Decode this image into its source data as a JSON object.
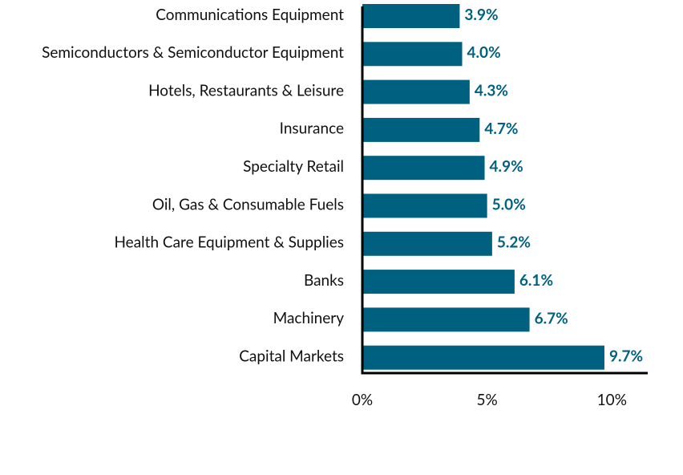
{
  "chart_data": {
    "type": "bar",
    "orientation": "horizontal",
    "color": "#00607f",
    "categories": [
      "Communications Equipment",
      "Semiconductors & Semiconductor Equipment",
      "Hotels, Restaurants & Leisure",
      "Insurance",
      "Specialty Retail",
      "Oil, Gas & Consumable Fuels",
      "Health Care Equipment & Supplies",
      "Banks",
      "Machinery",
      "Capital Markets"
    ],
    "values": [
      3.9,
      4.0,
      4.3,
      4.7,
      4.9,
      5.0,
      5.2,
      6.1,
      6.7,
      9.7
    ],
    "value_labels": [
      "3.9%",
      "4.0%",
      "4.3%",
      "4.7%",
      "4.9%",
      "5.0%",
      "5.2%",
      "6.1%",
      "6.7%",
      "9.7%"
    ],
    "xlim": [
      0,
      11.5
    ],
    "xticks": [
      {
        "value": 0,
        "label": "0%"
      },
      {
        "value": 5,
        "label": "5%"
      },
      {
        "value": 10,
        "label": "10%"
      }
    ]
  }
}
